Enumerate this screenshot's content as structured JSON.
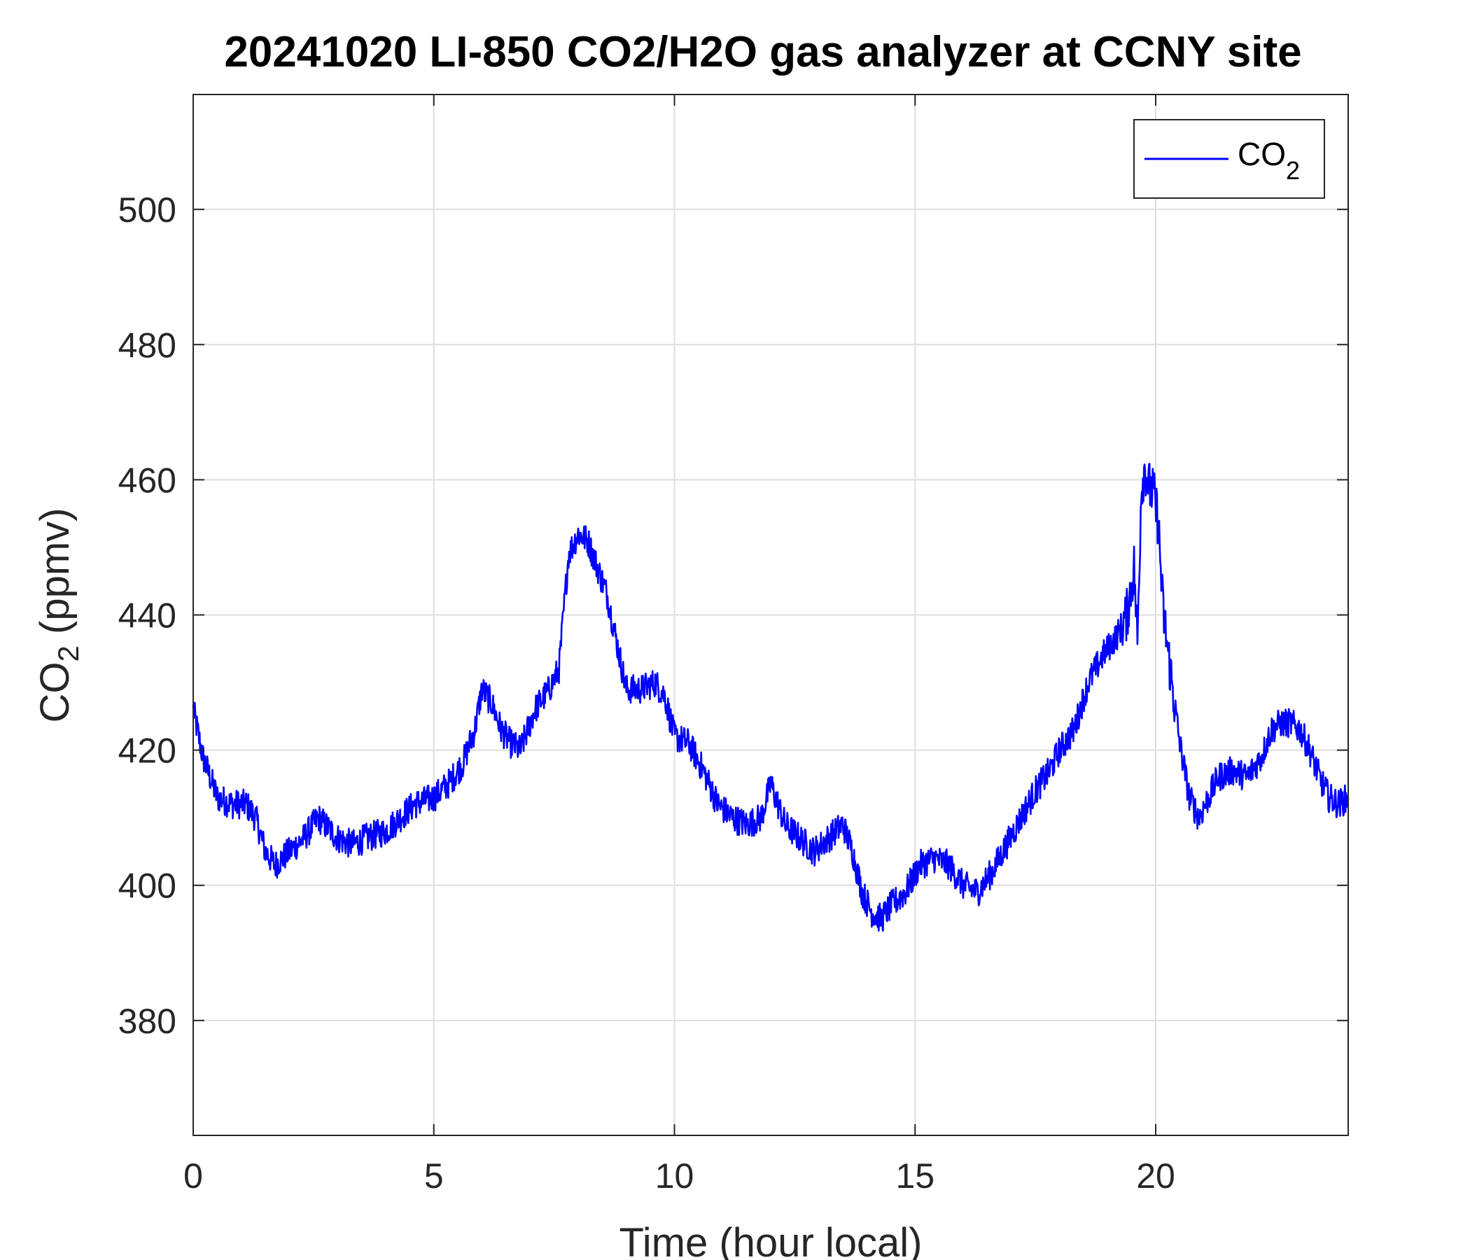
{
  "chart_data": {
    "type": "line",
    "title": "20241020 LI-850 CO2/H2O gas analyzer at CCNY site",
    "xlabel": "Time (hour local)",
    "ylabel": {
      "main": "CO",
      "sub": "2",
      "unit": " (ppmv)"
    },
    "xlim": [
      0,
      24
    ],
    "ylim": [
      363,
      517
    ],
    "xticks": [
      0,
      5,
      10,
      15,
      20
    ],
    "yticks": [
      380,
      400,
      420,
      440,
      460,
      480,
      500
    ],
    "grid": true,
    "legend_position": "top-right",
    "series": [
      {
        "name": "CO2",
        "legend_main": "CO",
        "legend_sub": "2",
        "color": "#0000ff",
        "x": [
          0,
          0.2,
          0.5,
          0.8,
          1.1,
          1.3,
          1.5,
          1.7,
          2.0,
          2.3,
          2.6,
          3.0,
          3.3,
          3.6,
          4.0,
          4.3,
          4.6,
          5.0,
          5.3,
          5.6,
          5.85,
          6.0,
          6.2,
          6.4,
          6.6,
          6.8,
          7.1,
          7.4,
          7.6,
          7.8,
          8.0,
          8.2,
          8.4,
          8.6,
          8.8,
          9.0,
          9.3,
          9.6,
          9.8,
          10.0,
          10.3,
          10.6,
          10.9,
          11.2,
          11.5,
          11.8,
          12.0,
          12.3,
          12.6,
          12.9,
          13.2,
          13.5,
          13.7,
          13.9,
          14.1,
          14.3,
          14.5,
          14.8,
          15.1,
          15.4,
          15.7,
          16.0,
          16.3,
          16.6,
          16.9,
          17.2,
          17.5,
          17.8,
          18.0,
          18.3,
          18.6,
          18.9,
          19.2,
          19.4,
          19.55,
          19.62,
          19.7,
          19.78,
          19.85,
          19.95,
          20.05,
          20.15,
          20.3,
          20.5,
          20.7,
          20.9,
          21.1,
          21.3,
          21.6,
          21.9,
          22.2,
          22.4,
          22.6,
          22.8,
          23.0,
          23.2,
          23.4,
          23.6,
          23.8,
          24.0
        ],
        "y": [
          426,
          419,
          413,
          412,
          412,
          410,
          405,
          403,
          405,
          407,
          410,
          407,
          406,
          407,
          408,
          410,
          412,
          413,
          415,
          418,
          423,
          429,
          427,
          423,
          421,
          420,
          426,
          429,
          432,
          449,
          452,
          451,
          447,
          443,
          436,
          429,
          429,
          430,
          428,
          422,
          421,
          417,
          412,
          410,
          409,
          410,
          415,
          409,
          407,
          405,
          407,
          409,
          405,
          399,
          396,
          395,
          397,
          399,
          403,
          404,
          403,
          400,
          399,
          402,
          406,
          410,
          414,
          417,
          420,
          423,
          430,
          434,
          437,
          440,
          447,
          436,
          459,
          462,
          459,
          458,
          454,
          441,
          432,
          421,
          413,
          410,
          413,
          416,
          417,
          416,
          419,
          423,
          424,
          424,
          423,
          420,
          416,
          413,
          412,
          413
        ]
      }
    ]
  }
}
